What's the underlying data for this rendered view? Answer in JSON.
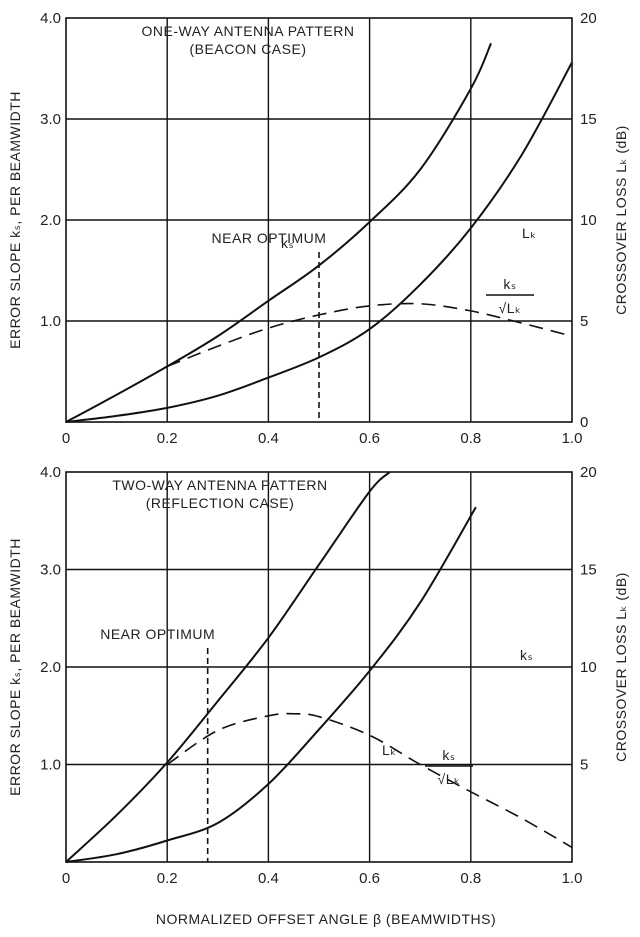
{
  "xlabel": "NORMALIZED OFFSET ANGLE β (BEAMWIDTHS)",
  "chart_data": [
    {
      "type": "line",
      "title_lines": [
        "ONE-WAY ANTENNA PATTERN",
        "(BEACON CASE)"
      ],
      "xlim": [
        0,
        1.0
      ],
      "ylim": [
        0,
        4.0
      ],
      "y2lim": [
        0,
        20
      ],
      "ylabel": "ERROR SLOPE kₛ, PER BEAMWIDTH",
      "y2label": "CROSSOVER LOSS Lₖ (dB)",
      "x_tick_labels": [
        "0",
        "0.2",
        "0.4",
        "0.6",
        "0.8",
        "1.0"
      ],
      "y_tick_labels": [
        "",
        "1.0",
        "2.0",
        "3.0",
        "4.0"
      ],
      "y2_tick_labels": [
        "0",
        "5",
        "10",
        "15",
        "20"
      ],
      "optimum": {
        "label": "NEAR   OPTIMUM",
        "x": 0.5
      },
      "series": [
        {
          "name": "kₛ",
          "axis": "left",
          "style": "solid",
          "x": [
            0,
            0.1,
            0.2,
            0.3,
            0.4,
            0.5,
            0.6,
            0.7,
            0.8,
            0.84
          ],
          "y": [
            0,
            0.27,
            0.55,
            0.85,
            1.2,
            1.55,
            1.98,
            2.5,
            3.3,
            3.75
          ]
        },
        {
          "name": "Lₖ",
          "axis": "right",
          "style": "solid",
          "x": [
            0,
            0.1,
            0.2,
            0.3,
            0.4,
            0.5,
            0.6,
            0.7,
            0.8,
            0.9,
            1.0
          ],
          "y": [
            0,
            0.3,
            0.7,
            1.3,
            2.2,
            3.2,
            4.6,
            6.8,
            9.6,
            13.2,
            17.8
          ]
        },
        {
          "name": "kₛ/√Lₖ",
          "axis": "left",
          "style": "dashed",
          "x": [
            0.2,
            0.3,
            0.4,
            0.5,
            0.6,
            0.7,
            0.8,
            0.9,
            1.0
          ],
          "y": [
            0.55,
            0.75,
            0.93,
            1.06,
            1.15,
            1.17,
            1.1,
            0.98,
            0.85
          ]
        }
      ]
    },
    {
      "type": "line",
      "title_lines": [
        "TWO-WAY ANTENNA PATTERN",
        "(REFLECTION CASE)"
      ],
      "xlim": [
        0,
        1.0
      ],
      "ylim": [
        0,
        4.0
      ],
      "y2lim": [
        0,
        20
      ],
      "ylabel": "ERROR SLOPE kₛ, PER BEAMWIDTH",
      "y2label": "CROSSOVER LOSS Lₖ (dB)",
      "x_tick_labels": [
        "0",
        "0.2",
        "0.4",
        "0.6",
        "0.8",
        "1.0"
      ],
      "y_tick_labels": [
        "",
        "1.0",
        "2.0",
        "3.0",
        "4.0"
      ],
      "y2_tick_labels": [
        "",
        "5",
        "10",
        "15",
        "20"
      ],
      "optimum": {
        "label": "NEAR   OPTIMUM",
        "x": 0.28
      },
      "series": [
        {
          "name": "kₛ",
          "axis": "left",
          "style": "solid",
          "x": [
            0,
            0.1,
            0.2,
            0.3,
            0.4,
            0.5,
            0.6,
            0.64
          ],
          "y": [
            0,
            0.48,
            1.02,
            1.65,
            2.3,
            3.05,
            3.8,
            4.0
          ]
        },
        {
          "name": "Lₖ",
          "axis": "right",
          "style": "solid",
          "x": [
            0,
            0.1,
            0.2,
            0.3,
            0.4,
            0.5,
            0.6,
            0.7,
            0.81
          ],
          "y": [
            0,
            0.4,
            1.1,
            2.0,
            4.0,
            6.8,
            9.8,
            13.3,
            18.2
          ]
        },
        {
          "name": "kₛ/√Lₖ",
          "axis": "left",
          "style": "dashed",
          "x": [
            0.2,
            0.3,
            0.4,
            0.45,
            0.5,
            0.6,
            0.7,
            0.8,
            0.9,
            1.0
          ],
          "y": [
            1.0,
            1.35,
            1.5,
            1.52,
            1.49,
            1.3,
            1.0,
            0.72,
            0.45,
            0.15
          ]
        }
      ]
    }
  ]
}
